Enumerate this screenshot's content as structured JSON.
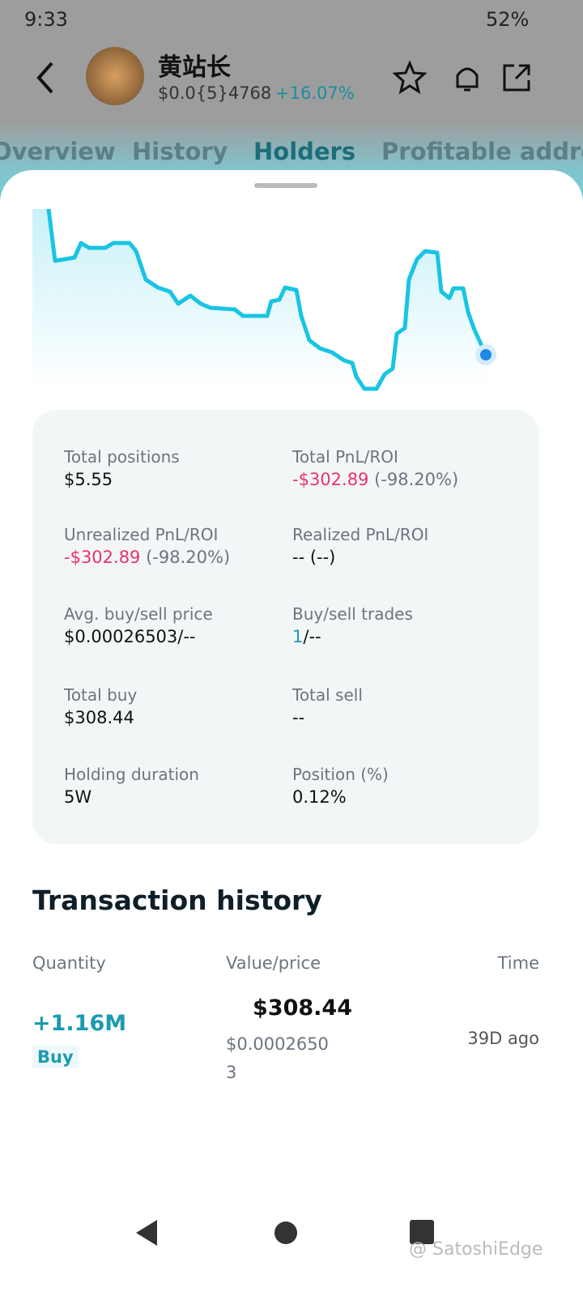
{
  "status_bar": {
    "time": "9:33",
    "battery": "52%"
  },
  "header": {
    "title": "黄站长",
    "price": "$0.0{5}4768",
    "change": "+16.07%"
  },
  "tabs": [
    "Overview",
    "History",
    "Holders",
    "Profitable addresses"
  ],
  "stats": [
    {
      "label": "Total positions",
      "value": [
        {
          "text": "$5.55",
          "tone": "plain"
        }
      ]
    },
    {
      "label": "Total PnL/ROI",
      "value": [
        {
          "text": "-$302.89",
          "tone": "negative"
        },
        {
          "text": " (-98.20%)",
          "tone": "muted"
        }
      ]
    },
    {
      "label": "Unrealized PnL/ROI",
      "value": [
        {
          "text": "-$302.89",
          "tone": "negative"
        },
        {
          "text": " (-98.20%)",
          "tone": "muted"
        }
      ]
    },
    {
      "label": "Realized PnL/ROI",
      "value": [
        {
          "text": "-- (--)",
          "tone": "plain"
        }
      ]
    },
    {
      "label": "Avg. buy/sell price",
      "value": [
        {
          "text": "$0.00026503/--",
          "tone": "plain"
        }
      ]
    },
    {
      "label": "Buy/sell trades",
      "value": [
        {
          "text": "1",
          "tone": "accent"
        },
        {
          "text": "/--",
          "tone": "plain"
        }
      ]
    },
    {
      "label": "Total buy",
      "value": [
        {
          "text": "$308.44",
          "tone": "plain"
        }
      ]
    },
    {
      "label": "Total sell",
      "value": [
        {
          "text": "--",
          "tone": "plain"
        }
      ]
    },
    {
      "label": "Holding duration",
      "value": [
        {
          "text": "5W",
          "tone": "plain"
        }
      ]
    },
    {
      "label": "Position (%)",
      "value": [
        {
          "text": "0.12%",
          "tone": "plain"
        }
      ]
    }
  ],
  "transactions": {
    "title": "Transaction history",
    "columns": [
      "Quantity",
      "Value/price",
      "Time"
    ],
    "rows": [
      {
        "quantity": "+1.16M",
        "side": "Buy",
        "value": "$308.44",
        "price": "$0.00026503",
        "time": "39D ago"
      }
    ]
  },
  "watermark": "@ SatoshiEdge"
}
